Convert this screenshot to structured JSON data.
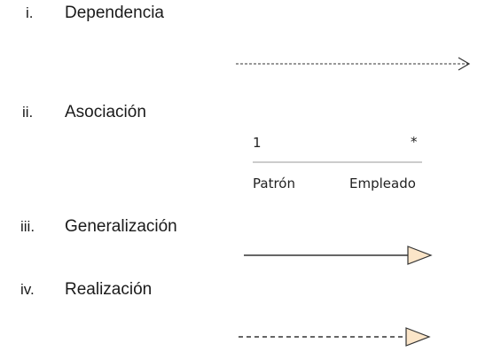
{
  "relationships": [
    {
      "numeral": "i.",
      "title": "Dependencia",
      "line_style": "dashed",
      "head": "open-arrow"
    },
    {
      "numeral": "ii.",
      "title": "Asociación",
      "line_style": "solid",
      "head": "none",
      "multiplicity_left": "1",
      "multiplicity_right": "*",
      "role_left": "Patrón",
      "role_right": "Empleado"
    },
    {
      "numeral": "iii.",
      "title": "Generalización",
      "line_style": "solid",
      "head": "hollow-triangle"
    },
    {
      "numeral": "iv.",
      "title": "Realización",
      "line_style": "dashed",
      "head": "hollow-triangle"
    }
  ],
  "colors": {
    "line": "#333333",
    "association_line": "#9a9a9a",
    "triangle_fill": "#fbe5c8"
  }
}
